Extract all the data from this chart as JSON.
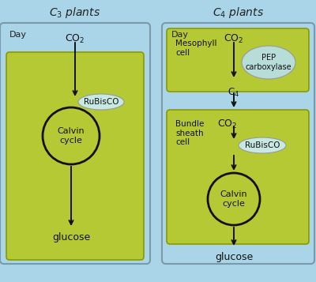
{
  "title_c3": "C$_3$ plants",
  "title_c4": "C$_4$ plants",
  "bg_color": "#aad4e8",
  "green_color": "#b5c934",
  "light_blue_ellipse": "#c8e8e2",
  "pep_ellipse_color": "#b8ddd8",
  "day_label": "Day",
  "co2_label": "CO$_2$",
  "rubisco_label": "RuBisCO",
  "calvin_label": "Calvin\ncycle",
  "glucose_label": "glucose",
  "mesophyll_label": "Mesophyll\ncell",
  "bundle_label": "Bundle\nsheath\ncell",
  "pep_label": "PEP\ncarboxylase",
  "c4_label": "C$_4$",
  "text_color": "#1a1a1a",
  "box_edge_color": "#7a9aaa",
  "green_edge_color": "#8a9a00"
}
